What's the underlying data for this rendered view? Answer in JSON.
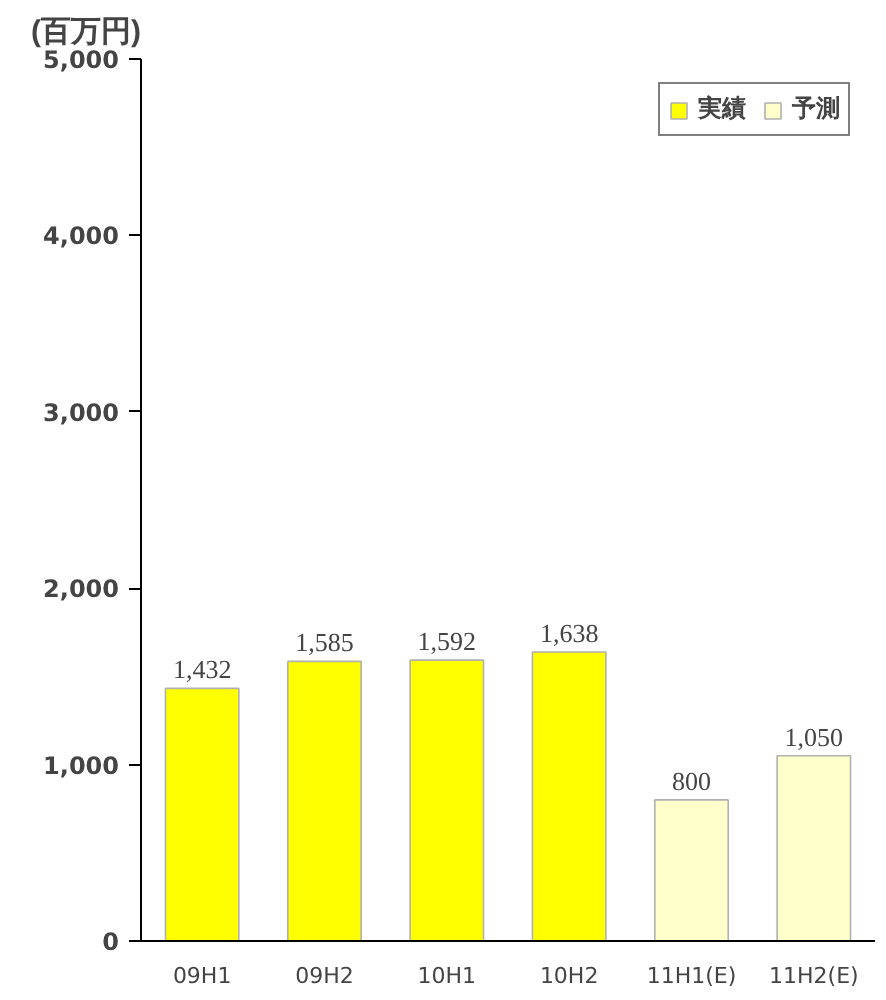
{
  "chart_data": {
    "type": "bar",
    "ylabel": "(百万円)",
    "categories": [
      "09H1",
      "09H2",
      "10H1",
      "10H2",
      "11H1(E)",
      "11H2(E)"
    ],
    "series": [
      {
        "name": "実績",
        "color": "#ffff00",
        "values": [
          1432,
          1585,
          1592,
          1638,
          null,
          null
        ],
        "value_labels": [
          "1,432",
          "1,585",
          "1,592",
          "1,638",
          null,
          null
        ]
      },
      {
        "name": "予測",
        "color": "#ffffcc",
        "values": [
          null,
          null,
          null,
          null,
          800,
          1050
        ],
        "value_labels": [
          null,
          null,
          null,
          null,
          "800",
          "1,050"
        ]
      }
    ],
    "ylim": [
      0,
      5000
    ],
    "yticks": [
      {
        "value": 0,
        "label": "0"
      },
      {
        "value": 1000,
        "label": "1,000"
      },
      {
        "value": 2000,
        "label": "2,000"
      },
      {
        "value": 3000,
        "label": "3,000"
      },
      {
        "value": 4000,
        "label": "4,000"
      },
      {
        "value": 5000,
        "label": "5,000"
      }
    ],
    "grid": false,
    "legend": "top right"
  }
}
